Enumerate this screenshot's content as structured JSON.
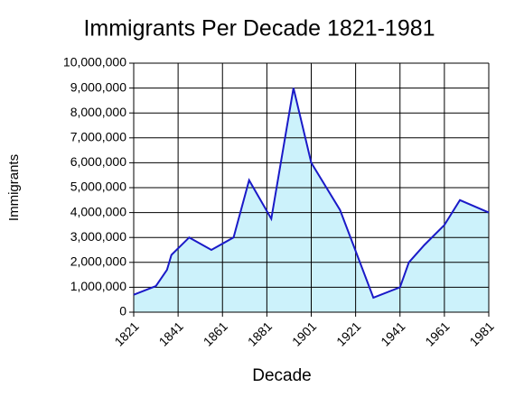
{
  "chart_data": {
    "type": "area",
    "title": "Immigrants Per Decade 1821-1981",
    "x_label": "Decade",
    "y_label": "Immigrants",
    "x": [
      1821,
      1831,
      1836,
      1838,
      1846,
      1856,
      1866,
      1873,
      1883,
      1893,
      1901,
      1914,
      1929,
      1941,
      1945,
      1952,
      1961,
      1968,
      1981
    ],
    "series": [
      {
        "name": "Immigrants",
        "color": "#1a1ac8",
        "fill": "#ccf2fb",
        "values": [
          700000,
          1050000,
          1700000,
          2300000,
          3000000,
          2500000,
          3000000,
          5300000,
          3750000,
          9000000,
          6000000,
          4100000,
          580000,
          1000000,
          2000000,
          2700000,
          3500000,
          4500000,
          4000000
        ]
      }
    ],
    "xlim": [
      1821,
      1981
    ],
    "xticks": [
      1821,
      1841,
      1861,
      1881,
      1901,
      1921,
      1941,
      1961,
      1981
    ],
    "ylim": [
      0,
      10000000
    ],
    "yticks": [
      0,
      {
        "value": 1000000,
        "label": "1,000,000"
      },
      {
        "value": 2000000,
        "label": "2,000,000"
      },
      {
        "value": 3000000,
        "label": "3,000,000"
      },
      {
        "value": 4000000,
        "label": "4,000,000"
      },
      {
        "value": 5000000,
        "label": "5,000,000"
      },
      {
        "value": 6000000,
        "label": "6,000,000"
      },
      {
        "value": 7000000,
        "label": "7,000,000"
      },
      {
        "value": 8000000,
        "label": "8,000,000"
      },
      {
        "value": 9000000,
        "label": "9,000,000"
      },
      {
        "value": 10000000,
        "label": "10,000,000"
      }
    ],
    "grid": true
  }
}
